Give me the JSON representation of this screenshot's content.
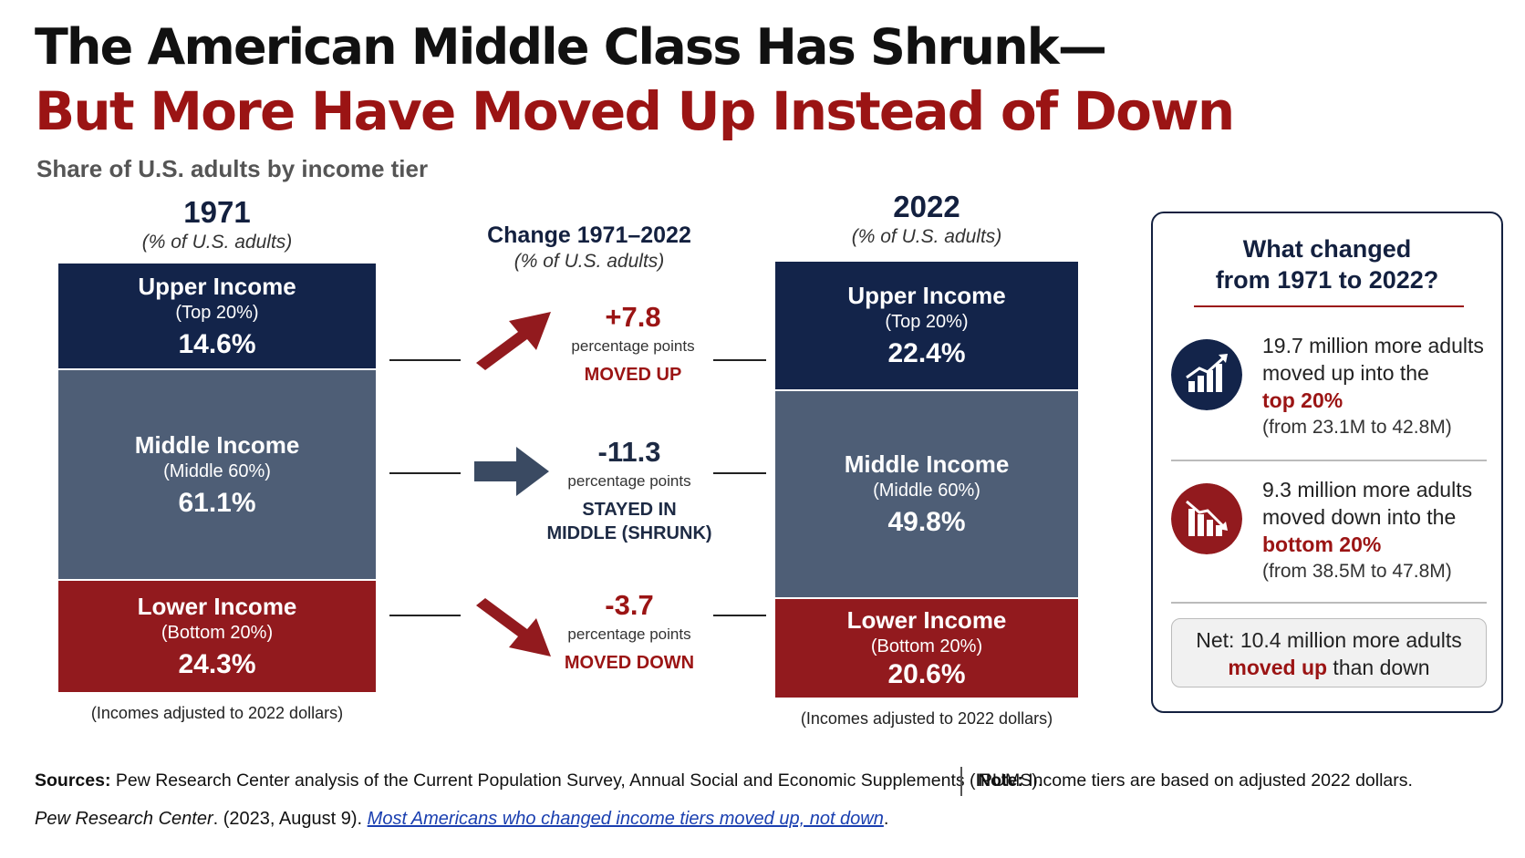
{
  "title_line1": "The American Middle Class Has Shrunk—",
  "title_line2": "But More Have Moved Up Instead of Down",
  "subtitle": "Share of U.S. adults by income tier",
  "colors": {
    "upper": "#13244a",
    "middle": "#4e5e76",
    "lower": "#921a1e",
    "accent_red": "#9b1414"
  },
  "chart_data": {
    "type": "bar",
    "stacked": true,
    "unit": "% of U.S. adults",
    "categories": [
      "1971",
      "2022"
    ],
    "series": [
      {
        "name": "Upper Income",
        "sub": "(Top 20%)",
        "values": [
          14.6,
          22.4
        ],
        "labels": [
          "14.6%",
          "22.4%"
        ]
      },
      {
        "name": "Middle Income",
        "sub": "(Middle 60%)",
        "values": [
          61.1,
          49.8
        ],
        "labels": [
          "61.1%",
          "49.8%"
        ]
      },
      {
        "name": "Lower Income",
        "sub": "(Bottom 20%)",
        "values": [
          24.3,
          20.6
        ],
        "labels": [
          "24.3%",
          "20.6%"
        ]
      }
    ],
    "change": {
      "title": "Change 1971–2022",
      "unit": "(% of U.S. adults)",
      "items": [
        {
          "value": "+7.8",
          "unit": "percentage points",
          "label": "MOVED UP",
          "direction": "up"
        },
        {
          "value": "-11.3",
          "unit": "percentage points",
          "label": "STAYED IN MIDDLE (SHRUNK)",
          "direction": "right"
        },
        {
          "value": "-3.7",
          "unit": "percentage points",
          "label": "MOVED DOWN",
          "direction": "down"
        }
      ]
    }
  },
  "col1971": {
    "year": "1971",
    "unit": "(% of U.S. adults)",
    "foot": "(Incomes adjusted to 2022 dollars)"
  },
  "col2022": {
    "year": "2022",
    "unit": "(% of U.S. adults)",
    "foot": "(Incomes adjusted to 2022 dollars)"
  },
  "change_head": {
    "title": "Change 1971–2022",
    "unit": "(% of U.S. adults)"
  },
  "changes": [
    {
      "value": "+7.8",
      "pp": "percentage points",
      "label": "MOVED UP"
    },
    {
      "value": "-11.3",
      "pp": "percentage points",
      "label_1": "STAYED IN",
      "label_2": "MIDDLE (SHRUNK)"
    },
    {
      "value": "-3.7",
      "pp": "percentage points",
      "label": "MOVED DOWN"
    }
  ],
  "panel": {
    "title_1": "What changed",
    "title_2": "from 1971 to 2022?",
    "up": {
      "icon": "chart-up-icon",
      "line1": "19.7 million more adults",
      "line2": "moved up into the",
      "highlight": "top 20%",
      "from": "(from 23.1M to 42.8M)"
    },
    "down": {
      "icon": "chart-down-icon",
      "line1": "9.3 million more adults",
      "line2": "moved down into the",
      "highlight": "bottom 20%",
      "from": "(from 38.5M to 47.8M)"
    },
    "net": {
      "pre": "Net: 10.4 million more adults",
      "highlight": "moved up",
      "post": " than down"
    }
  },
  "footer": {
    "sources_label": "Sources:",
    "sources_text": " Pew Research Center analysis of the Current Population Survey, Annual Social and Economic Supplements (IPUMS).",
    "note_label": "Note:",
    "note_text": " Income tiers are based on adjusted 2022 dollars.",
    "cite_italic": "Pew Research Center",
    "cite_date": ". (2023, August 9). ",
    "cite_link": "Most Americans who changed income tiers moved up, not down",
    "cite_end": "."
  }
}
